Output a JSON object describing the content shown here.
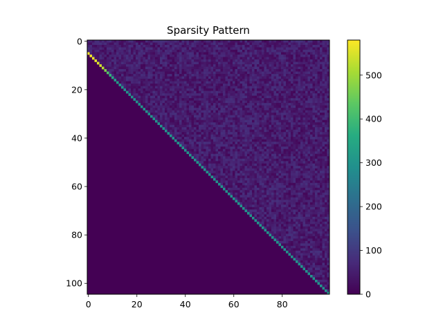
{
  "chart_data": {
    "type": "heatmap",
    "title": "Sparsity Pattern",
    "xlabel": "",
    "ylabel": "",
    "n_rows": 105,
    "n_cols": 100,
    "x_ticks": [
      0,
      20,
      40,
      60,
      80
    ],
    "y_ticks": [
      0,
      20,
      40,
      60,
      80,
      100
    ],
    "colorbar_ticks": [
      0,
      100,
      200,
      300,
      400,
      500
    ],
    "colorbar_range": [
      0,
      580
    ],
    "colormap": "viridis",
    "grid": false,
    "structure": "upper-triangular",
    "diagonal_values": [
      575,
      570,
      565,
      560,
      555,
      545,
      520,
      470,
      420,
      380,
      350,
      330,
      320,
      310,
      305,
      300
    ],
    "diagonal_value_default": 300,
    "upper_triangle_noise_range": [
      10,
      85
    ],
    "lower_triangle_value": 0
  }
}
